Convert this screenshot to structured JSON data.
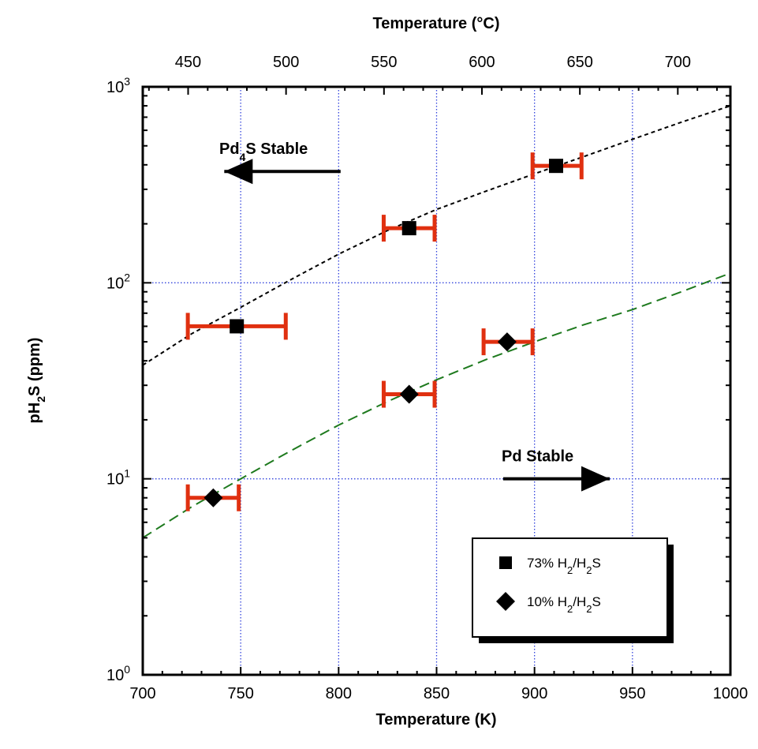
{
  "chart_data": {
    "type": "scatter",
    "x_scale": "linear",
    "y_scale": "log",
    "xlim": [
      700,
      1000
    ],
    "ylim": [
      1,
      1000
    ],
    "top_xlim_c": [
      426.85,
      726.85
    ],
    "xlabel": "Temperature (K)",
    "top_xlabel": "Temperature (°C)",
    "ylabel": {
      "pre": "pH",
      "sub": "2",
      "post": "S (ppm)"
    },
    "x_ticks": [
      "700",
      "750",
      "800",
      "850",
      "900",
      "950",
      "1000"
    ],
    "x_tick_values": [
      700,
      750,
      800,
      850,
      900,
      950,
      1000
    ],
    "top_ticks": [
      "450",
      "500",
      "550",
      "600",
      "650",
      "700"
    ],
    "top_tick_values": [
      450,
      500,
      550,
      600,
      650,
      700
    ],
    "y_ticks": [
      {
        "base": "10",
        "exp": "0",
        "value": 1
      },
      {
        "base": "10",
        "exp": "1",
        "value": 10
      },
      {
        "base": "10",
        "exp": "2",
        "value": 100
      },
      {
        "base": "10",
        "exp": "3",
        "value": 1000
      }
    ],
    "grid_x": [
      750,
      800,
      850,
      900,
      950
    ],
    "grid_y": [
      10,
      100
    ],
    "grid": true,
    "series": [
      {
        "label": {
          "pre": "73% H",
          "sub1": "2",
          "mid": "/H",
          "sub2": "2",
          "post": "S"
        },
        "marker": "square",
        "points": [
          {
            "x": 748,
            "y": 60,
            "xerr": [
              723,
              773
            ]
          },
          {
            "x": 836,
            "y": 190,
            "xerr": [
              823,
              849
            ]
          },
          {
            "x": 911,
            "y": 395,
            "xerr": [
              899,
              924
            ]
          }
        ]
      },
      {
        "label": {
          "pre": "10% H",
          "sub1": "2",
          "mid": "/H",
          "sub2": "2",
          "post": "S"
        },
        "marker": "diamond",
        "points": [
          {
            "x": 736,
            "y": 8,
            "xerr": [
              723,
              749
            ]
          },
          {
            "x": 836,
            "y": 27,
            "xerr": [
              823,
              849
            ]
          },
          {
            "x": 886,
            "y": 50,
            "xerr": [
              874,
              899
            ]
          }
        ]
      }
    ],
    "curves": [
      {
        "color": "#000000",
        "dash": "dotted",
        "points": [
          [
            700,
            38
          ],
          [
            725,
            55
          ],
          [
            750,
            75
          ],
          [
            775,
            103
          ],
          [
            800,
            140
          ],
          [
            825,
            185
          ],
          [
            850,
            237
          ],
          [
            875,
            293
          ],
          [
            900,
            360
          ],
          [
            925,
            440
          ],
          [
            950,
            540
          ],
          [
            975,
            660
          ],
          [
            1000,
            800
          ]
        ]
      },
      {
        "color": "#1e7a1e",
        "dash": "dashed",
        "points": [
          [
            700,
            5
          ],
          [
            725,
            7.2
          ],
          [
            750,
            10
          ],
          [
            775,
            13.8
          ],
          [
            800,
            18.8
          ],
          [
            825,
            24.8
          ],
          [
            850,
            32
          ],
          [
            875,
            40.5
          ],
          [
            900,
            50
          ],
          [
            925,
            61
          ],
          [
            950,
            73
          ],
          [
            975,
            90
          ],
          [
            1000,
            112
          ]
        ]
      }
    ],
    "errorbar_color": "#e03010",
    "annotations": [
      {
        "parts": [
          "Pd",
          "4",
          "S  Stable"
        ],
        "arrow": "left",
        "x_from": 801,
        "x_to": 740,
        "y": 370
      },
      {
        "parts": [
          "Pd  Stable"
        ],
        "arrow": "right",
        "x_from": 884,
        "x_to": 940,
        "y": 10
      }
    ],
    "legend_position": "bottom-right"
  }
}
